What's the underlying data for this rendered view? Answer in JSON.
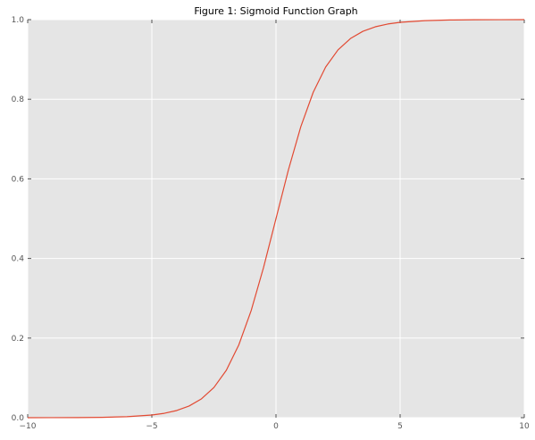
{
  "chart_data": {
    "type": "line",
    "title": "Figure 1: Sigmoid Function Graph",
    "xlabel": "",
    "ylabel": "",
    "xlim": [
      -10,
      10
    ],
    "ylim": [
      0.0,
      1.0
    ],
    "x_ticks": [
      -10,
      -5,
      0,
      5,
      10
    ],
    "x_tick_labels": [
      "−10",
      "−5",
      "0",
      "5",
      "10"
    ],
    "y_ticks": [
      0.0,
      0.2,
      0.4,
      0.6,
      0.8,
      1.0
    ],
    "y_tick_labels": [
      "0.0",
      "0.2",
      "0.4",
      "0.6",
      "0.8",
      "1.0"
    ],
    "grid": true,
    "legend": "none",
    "series": [
      {
        "function": "1 / (1 + exp(-x))",
        "x": [
          -10,
          -9,
          -8,
          -7,
          -6,
          -5,
          -4.5,
          -4,
          -3.5,
          -3,
          -2.5,
          -2,
          -1.5,
          -1,
          -0.5,
          0,
          0.5,
          1,
          1.5,
          2,
          2.5,
          3,
          3.5,
          4,
          4.5,
          5,
          6,
          7,
          8,
          9,
          10
        ],
        "y": [
          5e-05,
          0.00012,
          0.00034,
          0.00091,
          0.00247,
          0.00669,
          0.01099,
          0.01799,
          0.02931,
          0.04743,
          0.07586,
          0.1192,
          0.18243,
          0.26894,
          0.37754,
          0.5,
          0.62246,
          0.73106,
          0.81757,
          0.8808,
          0.92414,
          0.95257,
          0.97069,
          0.98201,
          0.98901,
          0.99331,
          0.99753,
          0.99909,
          0.99966,
          0.99988,
          0.99995
        ]
      }
    ]
  },
  "colors": {
    "plot_background": "#e5e5e5",
    "grid": "#ffffff",
    "line": "#e24a33",
    "tick_label": "#555555"
  }
}
